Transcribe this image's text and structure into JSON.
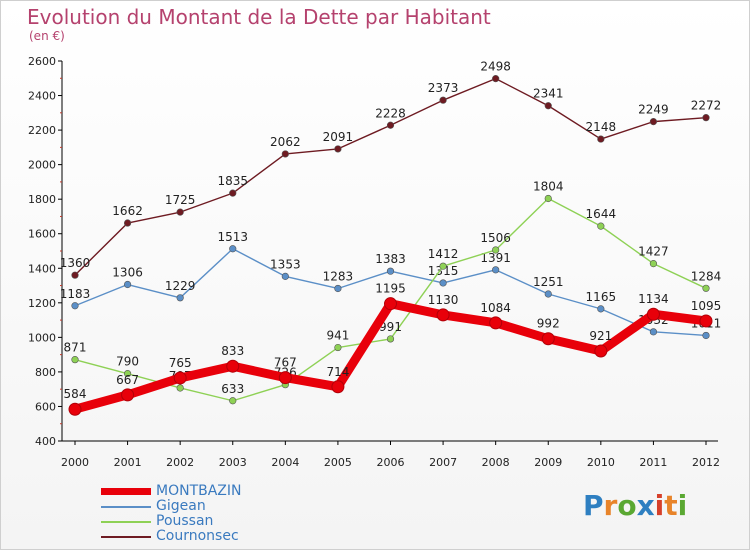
{
  "title": "Evolution du Montant de la Dette par Habitant",
  "subtitle": "(en €)",
  "logo": {
    "text": "Proxiti",
    "colors": [
      "#2e7fc1",
      "#e8842a",
      "#5aa832",
      "#2e7fc1",
      "#d6402a",
      "#e8842a",
      "#5aa832"
    ]
  },
  "chart_data": {
    "type": "line",
    "x": [
      "2000",
      "2001",
      "2002",
      "2003",
      "2004",
      "2005",
      "2006",
      "2007",
      "2008",
      "2009",
      "2010",
      "2011",
      "2012"
    ],
    "ylim": [
      400,
      2600
    ],
    "yticks": [
      "400",
      "600",
      "800",
      "1000",
      "1200",
      "1400",
      "1600",
      "1800",
      "2000",
      "2200",
      "2400",
      "2600"
    ],
    "grid": false,
    "legend_placement": "bottom-left",
    "series": [
      {
        "name": "Cournonsec",
        "color": "#6e1b22",
        "values": [
          1360,
          1662,
          1725,
          1835,
          2062,
          2091,
          2228,
          2373,
          2498,
          2341,
          2148,
          2249,
          2272
        ]
      },
      {
        "name": "Gigean",
        "color": "#5b8fc7",
        "values": [
          1183,
          1306,
          1229,
          1513,
          1353,
          1283,
          1383,
          1315,
          1391,
          1251,
          1165,
          1032,
          1011
        ]
      },
      {
        "name": "Poussan",
        "color": "#8ed155",
        "values": [
          871,
          790,
          707,
          633,
          726,
          941,
          991,
          1412,
          1506,
          1804,
          1644,
          1427,
          1284
        ]
      },
      {
        "name": "MONTBAZIN",
        "color": "#e8000a",
        "values": [
          584,
          667,
          765,
          833,
          767,
          714,
          1195,
          1130,
          1084,
          992,
          921,
          1134,
          1095
        ]
      }
    ]
  },
  "legend": [
    {
      "name": "MONTBAZIN",
      "color": "#e8000a",
      "thick": true
    },
    {
      "name": "Gigean",
      "color": "#5b8fc7",
      "thick": false
    },
    {
      "name": "Poussan",
      "color": "#8ed155",
      "thick": false
    },
    {
      "name": "Cournonsec",
      "color": "#6e1b22",
      "thick": false
    }
  ]
}
